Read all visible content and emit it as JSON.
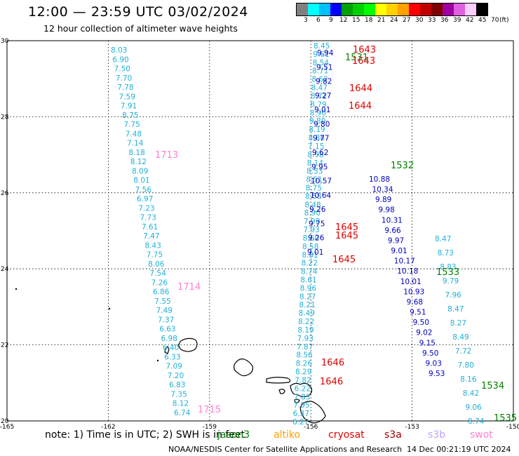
{
  "header": {
    "title": "12:00 — 23:59 UTC 03/02/2024",
    "subtitle": "12 hour collection of altimeter wave heights"
  },
  "legend": {
    "colors": [
      "#808080",
      "#00ffff",
      "#00c0ff",
      "#0000ff",
      "#00a000",
      "#00d000",
      "#00ff00",
      "#ffff00",
      "#ffd000",
      "#ffa000",
      "#ff0000",
      "#c00000",
      "#800000",
      "#a000a0",
      "#e060e0",
      "#ffd0ff",
      "#000000"
    ],
    "labels": [
      "3",
      "6",
      "9",
      "12",
      "15",
      "18",
      "21",
      "24",
      "27",
      "30",
      "33",
      "36",
      "39",
      "42",
      "45",
      "70",
      "(ft)"
    ]
  },
  "map": {
    "lon_min": -165,
    "lon_max": -150,
    "lat_min": 20,
    "lat_max": 30,
    "lon_ticks": [
      "-165",
      "-162",
      "-159",
      "-156",
      "-153",
      "-150"
    ],
    "lat_ticks": [
      "30",
      "28",
      "26",
      "24",
      "22",
      "20"
    ]
  },
  "passes": [
    {
      "name": "pass-1",
      "color": "#20b0d8",
      "values": [
        "8.03",
        "6.90",
        "7.50",
        "7.70",
        "7.78",
        "7.59",
        "7.91",
        "8.75",
        "7.75",
        "7.48",
        "7.14",
        "8.18",
        "8.12",
        "8.09",
        "8.01",
        "7.56",
        "6.97",
        "7.23",
        "7.73",
        "7.61",
        "7.47",
        "8.43",
        "7.75",
        "8.06",
        "7.54",
        "7.26",
        "6.86",
        "7.55",
        "7.49",
        "7.37",
        "6.63",
        "6.98",
        "6.40",
        "6.33",
        "7.09",
        "7.20",
        "6.83",
        "7.35",
        "8.12",
        "6.74"
      ]
    },
    {
      "name": "pass-2",
      "color": "#20b0d8",
      "values": [
        "8.45",
        "9.61",
        "8.54",
        "8.71",
        "8.62",
        "8.47",
        "8.72",
        "8.79",
        "8.90",
        "9.80",
        "8.19",
        "8.88",
        "7.15",
        "8.98",
        "8.14",
        "8.53",
        "8.51",
        "8.75",
        "8.58",
        "8.48",
        "8.90",
        "7.98",
        "7.93",
        "8.60",
        "8.58",
        "8.81",
        "8.22",
        "8.74",
        "8.61",
        "8.96",
        "8.27",
        "8.21",
        "8.49",
        "8.22",
        "8.19",
        "7.93",
        "7.87",
        "8.56",
        "8.26",
        "8.29",
        "7.82",
        "6.22",
        "7.83",
        "7.95",
        "6.37",
        "6.27"
      ]
    },
    {
      "name": "pass-3",
      "color": "#0000c0",
      "values": [
        "9.94",
        "9.51",
        "9.82",
        "9.27",
        "9.01",
        "9.80",
        "9.77",
        "9.62",
        "9.95",
        "10.57",
        "10.64",
        "9.26",
        "9.75",
        "9.26",
        "9.01"
      ]
    },
    {
      "name": "pass-4",
      "color": "#0000c0",
      "values": [
        "10.88",
        "10.34",
        "9.89",
        "9.98",
        "10.31",
        "9.66",
        "9.97",
        "9.01",
        "10.17",
        "10.18",
        "10.01",
        "10.93",
        "9.68",
        "9.51",
        "9.50",
        "9.02",
        "9.15",
        "9.50",
        "9.03",
        "9.53"
      ]
    },
    {
      "name": "pass-5",
      "color": "#20b0d8",
      "values": [
        "8.47",
        "8.73",
        "8.83",
        "9.79",
        "7.96",
        "8.47",
        "8.27",
        "8.49",
        "7.72",
        "7.80",
        "8.16",
        "8.42",
        "9.06",
        "8.74"
      ]
    }
  ],
  "time_labels": [
    {
      "text": "1643",
      "color": "#e00000"
    },
    {
      "text": "1531",
      "color": "#008000"
    },
    {
      "text": "1643",
      "color": "#e00000"
    },
    {
      "text": "1644",
      "color": "#e00000"
    },
    {
      "text": "1644",
      "color": "#e00000"
    },
    {
      "text": "1713",
      "color": "#ff80d0"
    },
    {
      "text": "1532",
      "color": "#008000"
    },
    {
      "text": "1645",
      "color": "#e00000"
    },
    {
      "text": "1645",
      "color": "#e00000"
    },
    {
      "text": "1645",
      "color": "#e00000"
    },
    {
      "text": "1533",
      "color": "#008000"
    },
    {
      "text": "1714",
      "color": "#ff80d0"
    },
    {
      "text": "1646",
      "color": "#e00000"
    },
    {
      "text": "1646",
      "color": "#e00000"
    },
    {
      "text": "1534",
      "color": "#008000"
    },
    {
      "text": "1715",
      "color": "#ff80d0"
    },
    {
      "text": "1535",
      "color": "#008000"
    }
  ],
  "footer": {
    "note": "note: 1) Time is in UTC; 2) SWH is in feet",
    "satellites": [
      {
        "name": "jason3",
        "color": "#008000"
      },
      {
        "name": "altiko",
        "color": "#ffa000"
      },
      {
        "name": "cryosat",
        "color": "#e00000"
      },
      {
        "name": "s3a",
        "color": "#a00000"
      },
      {
        "name": "s3b",
        "color": "#c0a0ff"
      },
      {
        "name": "swot",
        "color": "#ff80d0"
      }
    ],
    "credit": "NOAA/NESDIS Center for Satellite Applications and Research",
    "timestamp": "14 Dec 00:21:19 UTC 2024"
  }
}
